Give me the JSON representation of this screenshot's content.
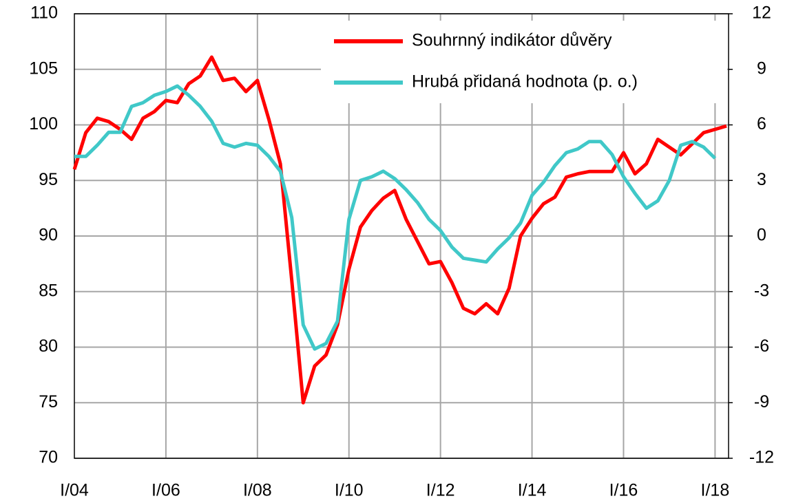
{
  "chart_data": {
    "type": "line",
    "categories": [
      "I/04",
      null,
      null,
      null,
      null,
      null,
      null,
      null,
      "I/06",
      null,
      null,
      null,
      null,
      null,
      null,
      null,
      "I/08",
      null,
      null,
      null,
      null,
      null,
      null,
      null,
      "I/10",
      null,
      null,
      null,
      null,
      null,
      null,
      null,
      "I/12",
      null,
      null,
      null,
      null,
      null,
      null,
      null,
      "I/14",
      null,
      null,
      null,
      null,
      null,
      null,
      null,
      "I/16",
      null,
      null,
      null,
      null,
      null,
      null,
      null,
      "I/18",
      null
    ],
    "series": [
      {
        "name": "Souhrnný indikátor důvěry",
        "color": "#ff0000",
        "axis": "y",
        "values": [
          96,
          99.3,
          100.6,
          100.3,
          99.6,
          98.7,
          100.6,
          101.2,
          102.2,
          102,
          103.7,
          104.4,
          106.1,
          104,
          104.2,
          103,
          104,
          100.5,
          96.5,
          86,
          75,
          78.3,
          79.3,
          82,
          87,
          90.8,
          92.3,
          93.4,
          94.1,
          91.5,
          89.5,
          87.5,
          87.7,
          85.8,
          83.5,
          83,
          83.9,
          83,
          85.3,
          90,
          91.6,
          92.9,
          93.5,
          95.3,
          95.6,
          95.8,
          95.8,
          95.8,
          97.5,
          95.6,
          96.5,
          98.7,
          98,
          97.3,
          98.3,
          99.3,
          99.6,
          99.9
        ]
      },
      {
        "name": "Hrubá přidaná hodnota (p. o.)",
        "color": "#40c8c8",
        "axis": "y2",
        "values": [
          4.3,
          4.3,
          4.9,
          5.6,
          5.6,
          7,
          7.2,
          7.6,
          7.8,
          8.1,
          7.6,
          7,
          6.2,
          5,
          4.8,
          5,
          4.9,
          4.3,
          3.5,
          1,
          -4.8,
          -6.1,
          -5.8,
          -4.6,
          0.9,
          3,
          3.2,
          3.5,
          3.1,
          2.5,
          1.8,
          0.9,
          0.3,
          -0.6,
          -1.2,
          -1.3,
          -1.4,
          -0.7,
          -0.1,
          0.7,
          2.2,
          2.9,
          3.8,
          4.5,
          4.7,
          5.1,
          5.1,
          4.4,
          3.2,
          2.3,
          1.5,
          1.9,
          3,
          4.9,
          5.1,
          4.8,
          4.2,
          null
        ]
      }
    ],
    "ylim": [
      70,
      110
    ],
    "yticks": [
      70,
      75,
      80,
      85,
      90,
      95,
      100,
      105,
      110
    ],
    "y2lim": [
      -12,
      12
    ],
    "y2ticks": [
      -12,
      -9,
      -6,
      -3,
      0,
      3,
      6,
      9,
      12
    ],
    "grid": true,
    "legend": "upper right"
  }
}
